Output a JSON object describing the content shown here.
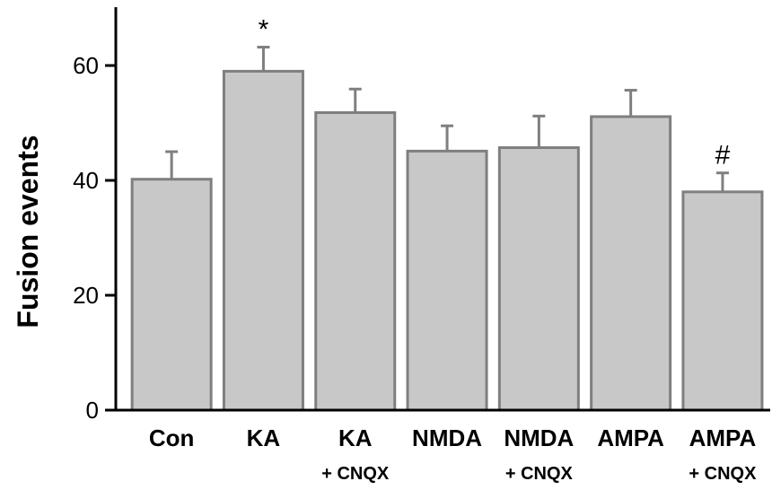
{
  "chart_data": {
    "type": "bar",
    "title": "",
    "xlabel": "",
    "ylabel": "Fusion events",
    "ylim": [
      0,
      70
    ],
    "yticks": [
      0,
      20,
      40,
      60
    ],
    "grid": false,
    "categories": [
      {
        "label": "Con",
        "sublabel": ""
      },
      {
        "label": "KA",
        "sublabel": ""
      },
      {
        "label": "KA",
        "sublabel": "+ CNQX"
      },
      {
        "label": "NMDA",
        "sublabel": ""
      },
      {
        "label": "NMDA",
        "sublabel": "+ CNQX"
      },
      {
        "label": "AMPA",
        "sublabel": ""
      },
      {
        "label": "AMPA",
        "sublabel": "+ CNQX"
      }
    ],
    "values": [
      40.2,
      59.0,
      51.8,
      45.1,
      45.7,
      51.1,
      38.0
    ],
    "errors": [
      4.8,
      4.2,
      4.1,
      4.4,
      5.5,
      4.6,
      3.3
    ],
    "annotations": [
      "",
      "*",
      "",
      "",
      "",
      "",
      "#"
    ],
    "colors": {
      "bar_fill": "#c8c8c8",
      "bar_stroke": "#7f7f7f",
      "axis": "#000000"
    }
  }
}
